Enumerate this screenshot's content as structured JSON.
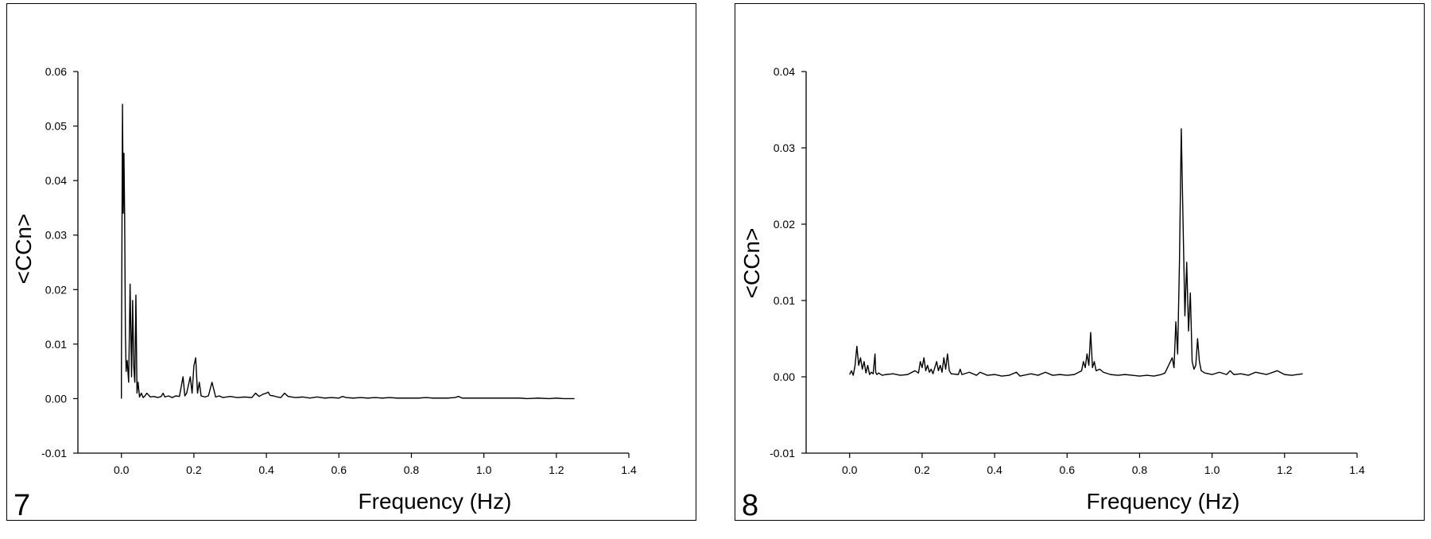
{
  "chart_data": [
    {
      "type": "line",
      "panel_label": "7",
      "xlabel": "Frequency (Hz)",
      "ylabel": "<CCn>",
      "xlim": [
        -0.12,
        1.4
      ],
      "ylim": [
        -0.01,
        0.06
      ],
      "xticks": [
        0.0,
        0.2,
        0.4,
        0.6,
        0.8,
        1.0,
        1.2,
        1.4
      ],
      "xtick_labels": [
        "0.0",
        "0.2",
        "0.4",
        "0.6",
        "0.8",
        "1.0",
        "1.2",
        "1.4"
      ],
      "yticks": [
        -0.01,
        0.0,
        0.01,
        0.02,
        0.03,
        0.04,
        0.05,
        0.06
      ],
      "ytick_labels": [
        "-0.01",
        "0.00",
        "0.01",
        "0.02",
        "0.03",
        "0.04",
        "0.05",
        "0.06"
      ],
      "grid": false,
      "series": [
        {
          "x": [
            0.0,
            0.0,
            0.003,
            0.005,
            0.007,
            0.009,
            0.011,
            0.013,
            0.016,
            0.02,
            0.024,
            0.028,
            0.031,
            0.034,
            0.037,
            0.04,
            0.043,
            0.046,
            0.05,
            0.055,
            0.06,
            0.065,
            0.07,
            0.08,
            0.09,
            0.1,
            0.11,
            0.115,
            0.12,
            0.13,
            0.14,
            0.15,
            0.16,
            0.17,
            0.175,
            0.18,
            0.19,
            0.195,
            0.2,
            0.205,
            0.21,
            0.215,
            0.22,
            0.23,
            0.24,
            0.25,
            0.26,
            0.27,
            0.28,
            0.3,
            0.32,
            0.34,
            0.36,
            0.37,
            0.38,
            0.39,
            0.4,
            0.405,
            0.41,
            0.42,
            0.43,
            0.44,
            0.45,
            0.46,
            0.48,
            0.5,
            0.52,
            0.54,
            0.56,
            0.58,
            0.6,
            0.61,
            0.62,
            0.64,
            0.66,
            0.68,
            0.7,
            0.72,
            0.74,
            0.76,
            0.78,
            0.8,
            0.82,
            0.84,
            0.86,
            0.88,
            0.9,
            0.92,
            0.93,
            0.94,
            0.96,
            0.98,
            1.0,
            1.02,
            1.05,
            1.08,
            1.1,
            1.12,
            1.15,
            1.18,
            1.2,
            1.22,
            1.25
          ],
          "y": [
            0.0,
            0.005,
            0.054,
            0.034,
            0.045,
            0.033,
            0.012,
            0.005,
            0.007,
            0.003,
            0.021,
            0.004,
            0.018,
            0.006,
            0.003,
            0.019,
            0.001,
            0.003,
            0.0003,
            0.001,
            0.0002,
            0.0005,
            0.001,
            0.0003,
            0.0004,
            0.0002,
            0.0004,
            0.001,
            0.0003,
            0.0005,
            0.0002,
            0.0005,
            0.0004,
            0.004,
            0.0005,
            0.001,
            0.004,
            0.001,
            0.006,
            0.0075,
            0.001,
            0.003,
            0.0005,
            0.0003,
            0.0005,
            0.003,
            0.0003,
            0.0005,
            0.0002,
            0.0004,
            0.0002,
            0.0003,
            0.0002,
            0.001,
            0.0004,
            0.0008,
            0.001,
            0.0012,
            0.0006,
            0.0005,
            0.0003,
            0.0002,
            0.001,
            0.0004,
            0.0002,
            0.0003,
            0.0001,
            0.0003,
            0.0001,
            0.0002,
            0.0001,
            0.0004,
            0.0002,
            0.0001,
            0.0002,
            0.0001,
            0.0002,
            0.0001,
            0.0002,
            0.0001,
            0.0001,
            0.0001,
            0.0001,
            0.0002,
            0.0001,
            0.0001,
            0.0001,
            0.0002,
            0.0004,
            0.0001,
            0.0001,
            0.0001,
            0.0001,
            0.0001,
            0.0001,
            0.0001,
            0.0001,
            0.0,
            0.0001,
            0.0,
            0.0001,
            0.0,
            0.0
          ]
        }
      ]
    },
    {
      "type": "line",
      "panel_label": "8",
      "xlabel": "Frequency (Hz)",
      "ylabel": "<CCn>",
      "xlim": [
        -0.12,
        1.4
      ],
      "ylim": [
        -0.01,
        0.04
      ],
      "xticks": [
        0.0,
        0.2,
        0.4,
        0.6,
        0.8,
        1.0,
        1.2,
        1.4
      ],
      "xtick_labels": [
        "0.0",
        "0.2",
        "0.4",
        "0.6",
        "0.8",
        "1.0",
        "1.2",
        "1.4"
      ],
      "yticks": [
        -0.01,
        0.0,
        0.01,
        0.02,
        0.03,
        0.04
      ],
      "ytick_labels": [
        "-0.01",
        "0.00",
        "0.01",
        "0.02",
        "0.03",
        "0.04"
      ],
      "grid": false,
      "series": [
        {
          "x": [
            0.0,
            0.005,
            0.01,
            0.015,
            0.02,
            0.025,
            0.03,
            0.035,
            0.04,
            0.045,
            0.05,
            0.055,
            0.06,
            0.065,
            0.07,
            0.072,
            0.075,
            0.08,
            0.09,
            0.1,
            0.12,
            0.14,
            0.16,
            0.18,
            0.19,
            0.195,
            0.2,
            0.205,
            0.21,
            0.215,
            0.22,
            0.225,
            0.23,
            0.235,
            0.24,
            0.245,
            0.25,
            0.255,
            0.26,
            0.265,
            0.27,
            0.275,
            0.28,
            0.3,
            0.305,
            0.31,
            0.33,
            0.35,
            0.36,
            0.38,
            0.4,
            0.42,
            0.44,
            0.46,
            0.47,
            0.5,
            0.52,
            0.54,
            0.56,
            0.58,
            0.6,
            0.62,
            0.64,
            0.645,
            0.65,
            0.655,
            0.66,
            0.665,
            0.67,
            0.675,
            0.68,
            0.69,
            0.7,
            0.72,
            0.74,
            0.76,
            0.78,
            0.8,
            0.82,
            0.84,
            0.86,
            0.87,
            0.88,
            0.89,
            0.895,
            0.9,
            0.905,
            0.91,
            0.915,
            0.92,
            0.925,
            0.93,
            0.935,
            0.94,
            0.945,
            0.95,
            0.955,
            0.96,
            0.965,
            0.97,
            0.98,
            1.0,
            1.02,
            1.04,
            1.05,
            1.06,
            1.08,
            1.1,
            1.12,
            1.15,
            1.18,
            1.2,
            1.22,
            1.25
          ],
          "y": [
            0.0003,
            0.0008,
            0.0002,
            0.0015,
            0.004,
            0.0015,
            0.0025,
            0.001,
            0.002,
            0.0005,
            0.0015,
            0.0003,
            0.0006,
            0.0004,
            0.003,
            0.0006,
            0.0003,
            0.0005,
            0.0002,
            0.0003,
            0.0004,
            0.0002,
            0.0003,
            0.0008,
            0.0005,
            0.002,
            0.0012,
            0.0025,
            0.0008,
            0.0015,
            0.0006,
            0.001,
            0.0004,
            0.0012,
            0.002,
            0.0008,
            0.0015,
            0.0006,
            0.0025,
            0.001,
            0.003,
            0.0008,
            0.0004,
            0.0003,
            0.001,
            0.0003,
            0.0006,
            0.0002,
            0.0006,
            0.0002,
            0.0003,
            0.0001,
            0.0002,
            0.0006,
            0.0001,
            0.0004,
            0.0002,
            0.0006,
            0.0002,
            0.0003,
            0.0002,
            0.0003,
            0.0008,
            0.002,
            0.0012,
            0.003,
            0.0015,
            0.0058,
            0.0012,
            0.002,
            0.0008,
            0.001,
            0.0006,
            0.0003,
            0.0002,
            0.0003,
            0.0002,
            0.0001,
            0.0002,
            0.0001,
            0.0003,
            0.0005,
            0.0015,
            0.0025,
            0.0012,
            0.0072,
            0.003,
            0.015,
            0.0325,
            0.02,
            0.008,
            0.015,
            0.006,
            0.011,
            0.002,
            0.001,
            0.0015,
            0.005,
            0.002,
            0.0008,
            0.0005,
            0.0003,
            0.0006,
            0.0003,
            0.0008,
            0.0003,
            0.0004,
            0.0002,
            0.0006,
            0.0003,
            0.0008,
            0.0003,
            0.0002,
            0.0004
          ]
        }
      ]
    }
  ]
}
